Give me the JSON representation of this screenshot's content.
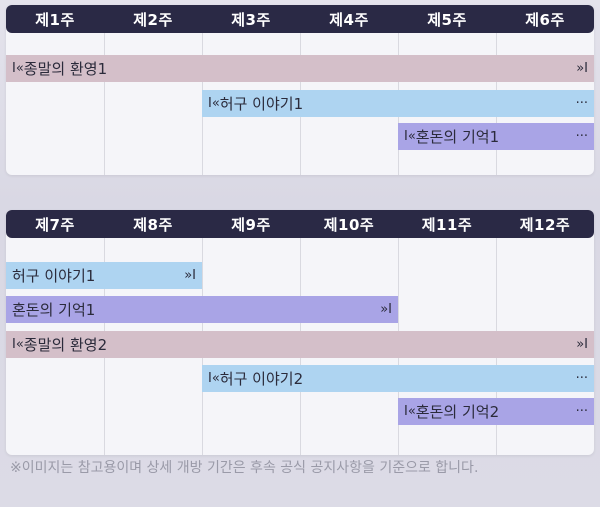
{
  "schedule1": {
    "weeks": [
      "제1주",
      "제2주",
      "제3주",
      "제4주",
      "제5주",
      "제6주"
    ],
    "bars": [
      {
        "label": "종말의 환영1",
        "start_marker": "I«",
        "end_marker": "»I",
        "color": "#d4bfc9"
      },
      {
        "label": "허구 이야기1",
        "start_marker": "I«",
        "end_marker": "···",
        "color": "#aed4f1"
      },
      {
        "label": "혼돈의 기억1",
        "start_marker": "I«",
        "end_marker": "···",
        "color": "#a9a4e6"
      }
    ]
  },
  "schedule2": {
    "weeks": [
      "제7주",
      "제8주",
      "제9주",
      "제10주",
      "제11주",
      "제12주"
    ],
    "bars": [
      {
        "label": "허구 이야기1",
        "start_marker": "",
        "end_marker": "»I",
        "color": "#aed4f1"
      },
      {
        "label": "혼돈의 기억1",
        "start_marker": "",
        "end_marker": "»I",
        "color": "#a9a4e6"
      },
      {
        "label": "종말의 환영2",
        "start_marker": "I«",
        "end_marker": "»I",
        "color": "#d4bfc9"
      },
      {
        "label": "허구 이야기2",
        "start_marker": "I«",
        "end_marker": "···",
        "color": "#aed4f1"
      },
      {
        "label": "혼돈의 기억2",
        "start_marker": "I«",
        "end_marker": "···",
        "color": "#a9a4e6"
      }
    ]
  },
  "footnote": "※이미지는 참고용이며 상세 개방 기간은 후속 공식 공지사항을 기준으로 합니다."
}
